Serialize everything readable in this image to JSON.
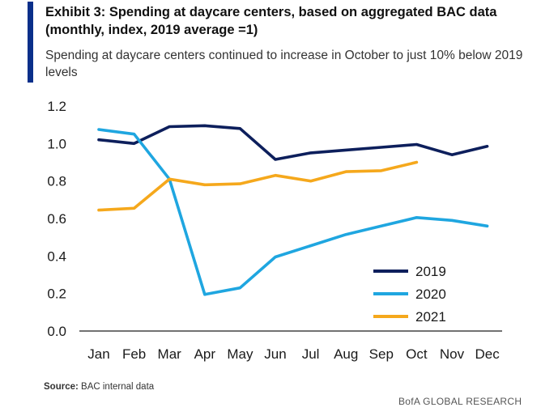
{
  "header": {
    "title": "Exhibit 3: Spending at daycare centers, based on aggregated BAC data (monthly, index, 2019 average =1)",
    "subtitle": "Spending at daycare centers continued to increase in October to just 10% below 2019 levels",
    "accent_color": "#0a2f8a"
  },
  "chart_data": {
    "type": "line",
    "title": "Exhibit 3: Spending at daycare centers, based on aggregated BAC data (monthly, index, 2019 average =1)",
    "subtitle": "Spending at daycare centers continued to increase in October to just 10% below 2019 levels",
    "xlabel": "",
    "ylabel": "",
    "categories": [
      "Jan",
      "Feb",
      "Mar",
      "Apr",
      "May",
      "Jun",
      "Jul",
      "Aug",
      "Sep",
      "Oct",
      "Nov",
      "Dec"
    ],
    "ylim": [
      0.0,
      1.2
    ],
    "yticks": [
      "0.0",
      "0.2",
      "0.4",
      "0.6",
      "0.8",
      "1.0",
      "1.2"
    ],
    "grid": false,
    "legend_position": "bottom-right",
    "series": [
      {
        "name": "2019",
        "color": "#0d1f5c",
        "values": [
          1.02,
          1.0,
          1.09,
          1.095,
          1.08,
          0.915,
          0.95,
          0.965,
          0.98,
          0.995,
          0.94,
          0.985
        ]
      },
      {
        "name": "2020",
        "color": "#1fa6e0",
        "values": [
          1.075,
          1.05,
          0.81,
          0.195,
          0.23,
          0.395,
          0.455,
          0.515,
          0.56,
          0.605,
          0.59,
          0.56
        ]
      },
      {
        "name": "2021",
        "color": "#f5a81c",
        "values": [
          0.645,
          0.655,
          0.81,
          0.78,
          0.785,
          0.83,
          0.8,
          0.85,
          0.855,
          0.9,
          null,
          null
        ]
      }
    ]
  },
  "source": {
    "label": "Source:",
    "text": "BAC internal data"
  },
  "footer": {
    "brand": "BofA GLOBAL RESEARCH"
  }
}
